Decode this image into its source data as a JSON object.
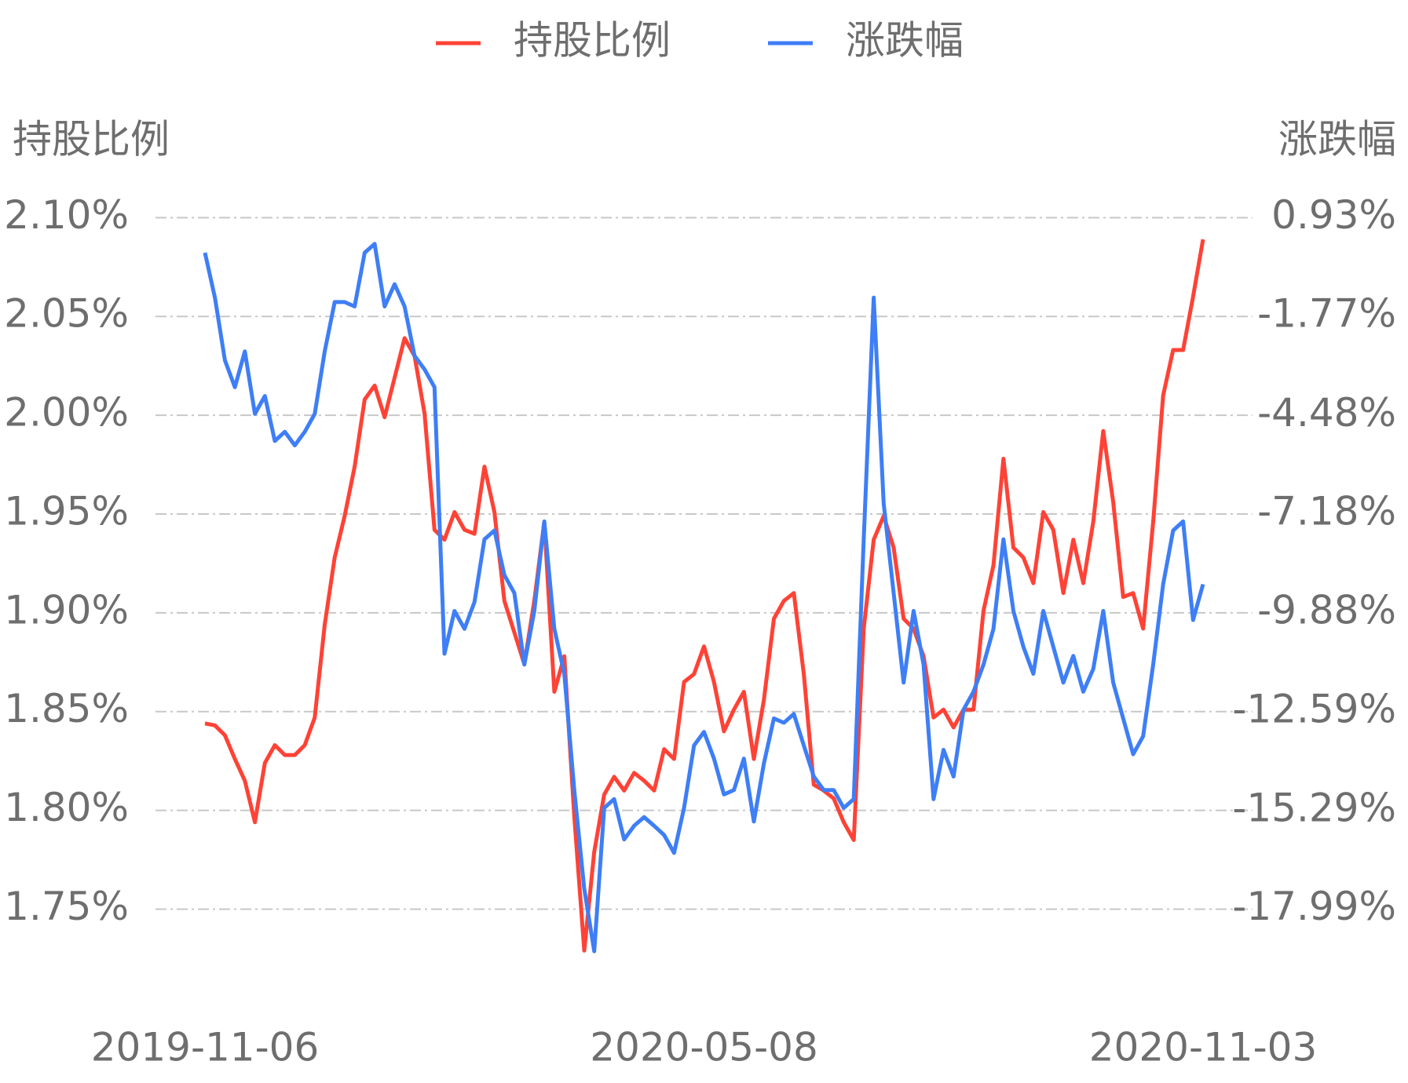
{
  "chart_data": {
    "type": "line",
    "legend": "top",
    "grid": true,
    "y_label": "持股比例",
    "y2_label": "涨跌幅",
    "categories": [
      "2019-11-06",
      null,
      null,
      null,
      null,
      null,
      null,
      null,
      null,
      null,
      null,
      null,
      null,
      null,
      null,
      null,
      null,
      null,
      null,
      null,
      null,
      null,
      null,
      null,
      null,
      null,
      null,
      null,
      null,
      null,
      null,
      null,
      null,
      null,
      null,
      null,
      null,
      null,
      null,
      null,
      null,
      null,
      null,
      null,
      null,
      null,
      null,
      null,
      null,
      null,
      "2020-05-08",
      null,
      null,
      null,
      null,
      null,
      null,
      null,
      null,
      null,
      null,
      null,
      null,
      null,
      null,
      null,
      null,
      null,
      null,
      null,
      null,
      null,
      null,
      null,
      null,
      null,
      null,
      null,
      null,
      null,
      null,
      null,
      null,
      null,
      null,
      null,
      null,
      null,
      null,
      null,
      null,
      null,
      null,
      null,
      null,
      null,
      null,
      null,
      null,
      null,
      "2020-11-03"
    ],
    "series": [
      {
        "name": "持股比例",
        "color": "#ff4236",
        "axis": "y",
        "values": [
          1.844,
          1.843,
          1.838,
          1.826,
          1.815,
          1.794,
          1.824,
          1.833,
          1.828,
          1.828,
          1.833,
          1.847,
          1.894,
          1.928,
          1.949,
          1.974,
          2.008,
          2.015,
          1.999,
          2.019,
          2.039,
          2.03,
          2.001,
          1.942,
          1.937,
          1.951,
          1.942,
          1.94,
          1.974,
          1.951,
          1.906,
          1.89,
          1.874,
          1.906,
          1.946,
          1.86,
          1.878,
          1.797,
          1.729,
          1.779,
          1.808,
          1.817,
          1.81,
          1.819,
          1.815,
          1.81,
          1.831,
          1.826,
          1.865,
          1.869,
          1.883,
          1.865,
          1.84,
          1.851,
          1.86,
          1.826,
          1.856,
          1.897,
          1.906,
          1.91,
          1.869,
          1.813,
          1.81,
          1.806,
          1.794,
          1.785,
          1.892,
          1.937,
          1.949,
          1.933,
          1.897,
          1.892,
          1.878,
          1.847,
          1.851,
          1.842,
          1.851,
          1.851,
          1.901,
          1.924,
          1.978,
          1.933,
          1.928,
          1.915,
          1.951,
          1.942,
          1.91,
          1.937,
          1.915,
          1.946,
          1.992,
          1.956,
          1.908,
          1.91,
          1.892,
          1.946,
          2.01,
          2.033,
          2.033,
          2.06,
          2.089
        ]
      },
      {
        "name": "涨跌幅",
        "color": "#3e7ef6",
        "axis": "y2",
        "values": [
          -0.03,
          -1.26,
          -2.97,
          -3.71,
          -2.73,
          -4.44,
          -3.95,
          -5.18,
          -4.93,
          -5.3,
          -4.93,
          -4.44,
          -2.73,
          -1.38,
          -1.38,
          -1.5,
          -0.03,
          0.21,
          -1.5,
          -0.89,
          -1.5,
          -2.85,
          -3.22,
          -3.71,
          -11.0,
          -9.83,
          -10.32,
          -9.59,
          -7.87,
          -7.63,
          -8.85,
          -9.34,
          -11.3,
          -9.83,
          -7.38,
          -10.32,
          -11.55,
          -14.73,
          -17.43,
          -19.14,
          -15.22,
          -14.98,
          -16.08,
          -15.71,
          -15.47,
          -15.71,
          -15.96,
          -16.45,
          -15.22,
          -13.51,
          -13.14,
          -13.87,
          -14.85,
          -14.73,
          -13.87,
          -15.59,
          -14.0,
          -12.77,
          -12.89,
          -12.65,
          -13.51,
          -14.36,
          -14.73,
          -14.73,
          -15.22,
          -14.98,
          -7.87,
          -1.26,
          -6.89,
          -9.34,
          -11.79,
          -9.83,
          -11.3,
          -14.98,
          -13.63,
          -14.36,
          -12.53,
          -12.04,
          -11.3,
          -10.32,
          -7.87,
          -9.83,
          -10.81,
          -11.55,
          -9.83,
          -10.81,
          -11.79,
          -11.06,
          -12.04,
          -11.42,
          -9.83,
          -11.79,
          -12.77,
          -13.75,
          -13.26,
          -11.3,
          -9.1,
          -7.63,
          -7.38,
          -10.08,
          -9.1
        ]
      }
    ],
    "ylim": [
      1.72,
      2.12
    ],
    "yticks": [
      {
        "value": 1.75,
        "label": "1.75%"
      },
      {
        "value": 1.8,
        "label": "1.80%"
      },
      {
        "value": 1.85,
        "label": "1.85%"
      },
      {
        "value": 1.9,
        "label": "1.90%"
      },
      {
        "value": 1.95,
        "label": "1.95%"
      },
      {
        "value": 2.0,
        "label": "2.00%"
      },
      {
        "value": 2.05,
        "label": "2.05%"
      },
      {
        "value": 2.1,
        "label": "2.10%"
      }
    ],
    "y2lim": [
      -19.61,
      2.01
    ],
    "y2ticks": [
      {
        "value": -17.99,
        "label": "-17.99%"
      },
      {
        "value": -15.29,
        "label": "-15.29%"
      },
      {
        "value": -12.59,
        "label": "-12.59%"
      },
      {
        "value": -9.88,
        "label": "-9.88%"
      },
      {
        "value": -7.18,
        "label": "-7.18%"
      },
      {
        "value": -4.48,
        "label": "-4.48%"
      },
      {
        "value": -1.77,
        "label": "-1.77%"
      },
      {
        "value": 0.93,
        "label": "0.93%"
      }
    ]
  }
}
